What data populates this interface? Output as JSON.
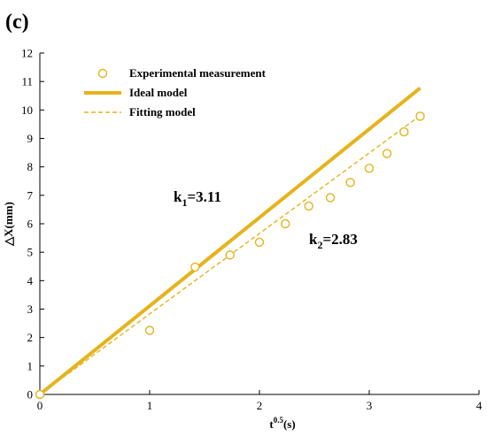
{
  "panel_label": "(c)",
  "chart_data": {
    "type": "scatter",
    "xlabel_base": "t",
    "xlabel_sup": "0.5",
    "xlabel_unit": "(s)",
    "ylabel": "△X(mm)",
    "xlim": [
      0,
      4
    ],
    "ylim": [
      0,
      12
    ],
    "x_ticks": [
      "0",
      "1",
      "2",
      "3",
      "4"
    ],
    "y_ticks": [
      "0",
      "1",
      "2",
      "3",
      "4",
      "5",
      "6",
      "7",
      "8",
      "9",
      "10",
      "11",
      "12"
    ],
    "grid": false,
    "legend_position": "top-left",
    "color": "#E5B31B",
    "series": [
      {
        "name": "Experimental measurement",
        "kind": "markers",
        "x": [
          0,
          1.0,
          1.414,
          1.732,
          2.0,
          2.236,
          2.449,
          2.646,
          2.828,
          3.0,
          3.162,
          3.317,
          3.464
        ],
        "y": [
          0,
          2.25,
          4.48,
          4.9,
          5.35,
          6.0,
          6.62,
          6.92,
          7.45,
          7.95,
          8.47,
          9.23,
          9.78
        ]
      },
      {
        "name": "Ideal model",
        "kind": "solid-line",
        "x": [
          0,
          3.464
        ],
        "y": [
          0,
          10.77
        ]
      },
      {
        "name": "Fitting model",
        "kind": "dashed-line",
        "x": [
          0,
          3.464
        ],
        "y": [
          0,
          9.8
        ]
      }
    ],
    "annotations": [
      {
        "base": "k",
        "sub": "1",
        "value": "=3.11"
      },
      {
        "base": "k",
        "sub": "2",
        "value": "=2.83"
      }
    ]
  }
}
